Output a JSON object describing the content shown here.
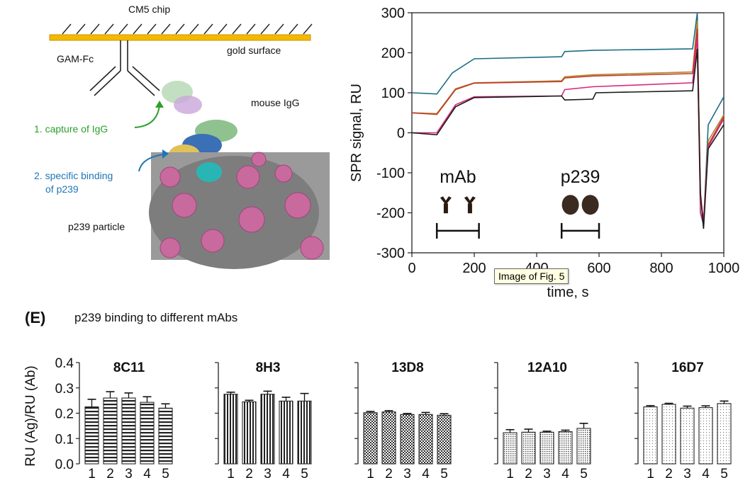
{
  "schematic": {
    "chip_label": "CM5 chip",
    "gold_label": "gold surface",
    "antibody_label": "GAM-Fc",
    "igg_label": "mouse IgG",
    "step1": "1. capture of IgG",
    "step2_line1": "2. specific binding",
    "step2_line2": "of p239",
    "particle_label": "p239 particle"
  },
  "tooltip": {
    "text": "Image of Fig. 5"
  },
  "panel_e": {
    "letter": "(E)",
    "title": "p239 binding to different mAbs"
  },
  "colors": {
    "gold": "#f5b800",
    "pink": "#c86a9e",
    "gray": "#8e8e8e",
    "cyan": "#2ab5b5",
    "green": "#2ca02c",
    "blue": "#1f77b4"
  },
  "chart_data": [
    {
      "type": "line",
      "title": "",
      "xlabel": "time, s",
      "ylabel": "SPR signal, RU",
      "xlim": [
        0,
        1000
      ],
      "ylim": [
        -300,
        300
      ],
      "xticks": [
        0,
        200,
        400,
        600,
        800,
        1000
      ],
      "yticks": [
        -300,
        -200,
        -100,
        0,
        100,
        200,
        300
      ],
      "annotations": [
        {
          "text": "mAb",
          "x_range": [
            80,
            215
          ]
        },
        {
          "text": "p239",
          "x_range": [
            480,
            600
          ]
        }
      ],
      "series": [
        {
          "name": "trace-teal",
          "color": "#1a6e84",
          "points": [
            [
              0,
              100
            ],
            [
              80,
              97
            ],
            [
              130,
              150
            ],
            [
              200,
              185
            ],
            [
              480,
              190
            ],
            [
              490,
              203
            ],
            [
              580,
              206
            ],
            [
              900,
              210
            ],
            [
              915,
              300
            ],
            [
              925,
              -200
            ],
            [
              935,
              -230
            ],
            [
              950,
              20
            ],
            [
              1000,
              90
            ]
          ]
        },
        {
          "name": "trace-gold",
          "color": "#b08a2a",
          "points": [
            [
              0,
              50
            ],
            [
              80,
              48
            ],
            [
              140,
              110
            ],
            [
              200,
              125
            ],
            [
              480,
              130
            ],
            [
              490,
              140
            ],
            [
              580,
              145
            ],
            [
              900,
              152
            ],
            [
              915,
              280
            ],
            [
              925,
              -150
            ],
            [
              935,
              -230
            ],
            [
              950,
              -20
            ],
            [
              1000,
              45
            ]
          ]
        },
        {
          "name": "trace-red",
          "color": "#c0392b",
          "points": [
            [
              0,
              50
            ],
            [
              80,
              46
            ],
            [
              140,
              108
            ],
            [
              200,
              124
            ],
            [
              480,
              128
            ],
            [
              490,
              137
            ],
            [
              580,
              142
            ],
            [
              900,
              148
            ],
            [
              915,
              260
            ],
            [
              925,
              -160
            ],
            [
              935,
              -220
            ],
            [
              950,
              -30
            ],
            [
              1000,
              40
            ]
          ]
        },
        {
          "name": "trace-magenta",
          "color": "#d6287c",
          "points": [
            [
              0,
              0
            ],
            [
              80,
              0
            ],
            [
              140,
              70
            ],
            [
              200,
              90
            ],
            [
              480,
              92
            ],
            [
              490,
              108
            ],
            [
              580,
              115
            ],
            [
              900,
              125
            ],
            [
              915,
              240
            ],
            [
              925,
              -200
            ],
            [
              935,
              -225
            ],
            [
              950,
              -35
            ],
            [
              1000,
              35
            ]
          ]
        },
        {
          "name": "trace-black",
          "color": "#1a1a1a",
          "points": [
            [
              0,
              0
            ],
            [
              80,
              -5
            ],
            [
              140,
              65
            ],
            [
              200,
              88
            ],
            [
              480,
              92
            ],
            [
              490,
              82
            ],
            [
              580,
              84
            ],
            [
              590,
              100
            ],
            [
              900,
              105
            ],
            [
              915,
              210
            ],
            [
              925,
              -150
            ],
            [
              935,
              -240
            ],
            [
              950,
              -40
            ],
            [
              1000,
              20
            ]
          ]
        }
      ]
    },
    {
      "type": "bar",
      "title": "8C11",
      "ylabel": "RU (Ag)/RU (Ab)",
      "categories": [
        "1",
        "2",
        "3",
        "4",
        "5"
      ],
      "values": [
        0.225,
        0.26,
        0.26,
        0.243,
        0.22
      ],
      "errors": [
        0.03,
        0.025,
        0.02,
        0.022,
        0.017
      ],
      "ylim": [
        0,
        0.4
      ],
      "yticks": [
        "0.0",
        "0.1",
        "0.2",
        "0.3",
        "0.4"
      ]
    },
    {
      "type": "bar",
      "title": "8H3",
      "categories": [
        "1",
        "2",
        "3",
        "4",
        "5"
      ],
      "values": [
        0.275,
        0.245,
        0.275,
        0.248,
        0.248
      ],
      "errors": [
        0.008,
        0.006,
        0.012,
        0.015,
        0.03
      ],
      "ylim": [
        0,
        0.4
      ]
    },
    {
      "type": "bar",
      "title": "13D8",
      "categories": [
        "1",
        "2",
        "3",
        "4",
        "5"
      ],
      "values": [
        0.202,
        0.205,
        0.195,
        0.195,
        0.192
      ],
      "errors": [
        0.005,
        0.005,
        0.004,
        0.008,
        0.006
      ],
      "ylim": [
        0,
        0.4
      ]
    },
    {
      "type": "bar",
      "title": "12A10",
      "categories": [
        "1",
        "2",
        "3",
        "4",
        "5"
      ],
      "values": [
        0.123,
        0.125,
        0.125,
        0.127,
        0.14
      ],
      "errors": [
        0.012,
        0.012,
        0.004,
        0.006,
        0.02
      ],
      "ylim": [
        0,
        0.4
      ]
    },
    {
      "type": "bar",
      "title": "16D7",
      "categories": [
        "1",
        "2",
        "3",
        "4",
        "5"
      ],
      "values": [
        0.225,
        0.235,
        0.22,
        0.222,
        0.238
      ],
      "errors": [
        0.005,
        0.004,
        0.008,
        0.007,
        0.01
      ],
      "ylim": [
        0,
        0.4
      ]
    }
  ]
}
